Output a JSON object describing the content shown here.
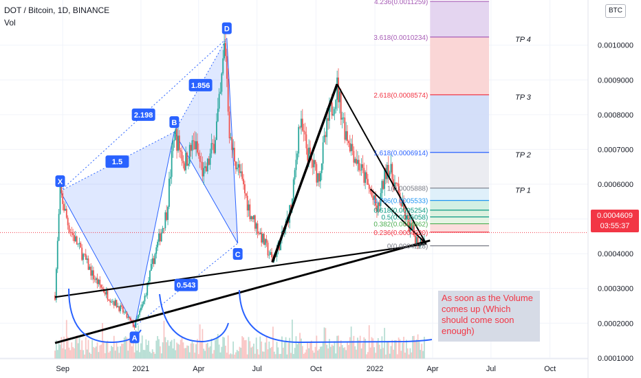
{
  "header": {
    "title": "DOT / Bitcoin, 1D, BINANCE",
    "vol_label": "Vol"
  },
  "currency_button": "BTC",
  "price_tag": {
    "price": "0.0004609",
    "countdown": "03:55:37"
  },
  "note": "As soon as the Volume comes up (Which should come soon enough)",
  "colors": {
    "candle_up": "#26a69a",
    "candle_down": "#ef5350",
    "pattern": "#2962ff",
    "trend": "#000000",
    "fib_red": "#f23645"
  },
  "chart_data": {
    "type": "candlestick",
    "title": "DOT / Bitcoin, 1D, BINANCE",
    "x_ticks": [
      "Sep",
      "2021",
      "Apr",
      "Jul",
      "Oct",
      "2022",
      "Apr",
      "Jul",
      "Oct"
    ],
    "y_ticks": [
      "0.0010000",
      "0.0009000",
      "0.0008000",
      "0.0007000",
      "0.0006000",
      "0.0005000",
      "0.0004000",
      "0.0003000",
      "0.0002000",
      "0.0001000"
    ],
    "ylim": [
      7e-05,
      0.00113
    ],
    "last_price": 0.0004609,
    "price_path": [
      [
        "2020-08-20",
        0.00028
      ],
      [
        "2020-08-28",
        0.00058
      ],
      [
        "2020-09-10",
        0.00048
      ],
      [
        "2020-10-01",
        0.0004
      ],
      [
        "2020-10-20",
        0.00033
      ],
      [
        "2020-11-10",
        0.00028
      ],
      [
        "2020-12-01",
        0.00024
      ],
      [
        "2020-12-22",
        0.00019
      ],
      [
        "2021-01-05",
        0.00026
      ],
      [
        "2021-01-20",
        0.00038
      ],
      [
        "2021-02-10",
        0.00052
      ],
      [
        "2021-02-22",
        0.00075
      ],
      [
        "2021-03-10",
        0.00066
      ],
      [
        "2021-03-25",
        0.00072
      ],
      [
        "2021-04-10",
        0.00062
      ],
      [
        "2021-04-25",
        0.00072
      ],
      [
        "2021-05-05",
        0.00085
      ],
      [
        "2021-05-12",
        0.00102
      ],
      [
        "2021-05-20",
        0.00072
      ],
      [
        "2021-06-01",
        0.00065
      ],
      [
        "2021-06-20",
        0.00052
      ],
      [
        "2021-07-05",
        0.00046
      ],
      [
        "2021-07-25",
        0.00038
      ],
      [
        "2021-08-10",
        0.00045
      ],
      [
        "2021-08-25",
        0.00055
      ],
      [
        "2021-09-05",
        0.00078
      ],
      [
        "2021-09-20",
        0.00068
      ],
      [
        "2021-10-05",
        0.00062
      ],
      [
        "2021-10-20",
        0.00078
      ],
      [
        "2021-11-03",
        0.00088
      ],
      [
        "2021-11-15",
        0.00076
      ],
      [
        "2021-12-01",
        0.00068
      ],
      [
        "2021-12-20",
        0.0006
      ],
      [
        "2022-01-05",
        0.00052
      ],
      [
        "2022-01-20",
        0.00066
      ],
      [
        "2022-02-05",
        0.00058
      ],
      [
        "2022-02-20",
        0.00049
      ],
      [
        "2022-03-10",
        0.00043
      ],
      [
        "2022-03-20",
        0.00046
      ]
    ],
    "xabcd_pattern": {
      "points": [
        {
          "label": "X",
          "date": "2020-08-28",
          "price": 0.00058
        },
        {
          "label": "A",
          "date": "2020-12-22",
          "price": 0.00019
        },
        {
          "label": "B",
          "date": "2021-02-22",
          "price": 0.00075
        },
        {
          "label": "C",
          "date": "2021-06-01",
          "price": 0.00043
        },
        {
          "label": "D",
          "date": "2021-05-15",
          "price": 0.00102
        }
      ],
      "ratios": [
        "1.5",
        "2.198",
        "1.856",
        "0.543"
      ]
    },
    "fib_levels": [
      {
        "label": "4.236(0.0011259)",
        "price": 0.0011259,
        "color": "#a65bb5"
      },
      {
        "label": "3.618(0.0010234)",
        "price": 0.0010234,
        "color": "#a65bb5"
      },
      {
        "label": "2.618(0.0008574)",
        "price": 0.0008574,
        "color": "#f23645"
      },
      {
        "label": "1.618(0.0006914)",
        "price": 0.0006914,
        "color": "#2962ff"
      },
      {
        "label": "1(0.0005888)",
        "price": 0.0005888,
        "color": "#787b86"
      },
      {
        "label": "0.786(0.0005533)",
        "price": 0.0005533,
        "color": "#2196f3"
      },
      {
        "label": "0.618(0.0005254)",
        "price": 0.0005254,
        "color": "#089981"
      },
      {
        "label": "0.5(0.0005058)",
        "price": 0.0005058,
        "color": "#089981"
      },
      {
        "label": "0.382(0.0004862)",
        "price": 0.0004862,
        "color": "#4caf50"
      },
      {
        "label": "0.236(0.0004620)",
        "price": 0.000462,
        "color": "#f23645"
      },
      {
        "label": "0(0.0004228)",
        "price": 0.0004228,
        "color": "#787b86"
      }
    ],
    "targets": [
      {
        "label": "TP 4",
        "price": 0.0010234
      },
      {
        "label": "TP 3",
        "price": 0.0008574
      },
      {
        "label": "TP 2",
        "price": 0.0006914
      },
      {
        "label": "TP 1",
        "price": 0.0005888
      }
    ]
  }
}
